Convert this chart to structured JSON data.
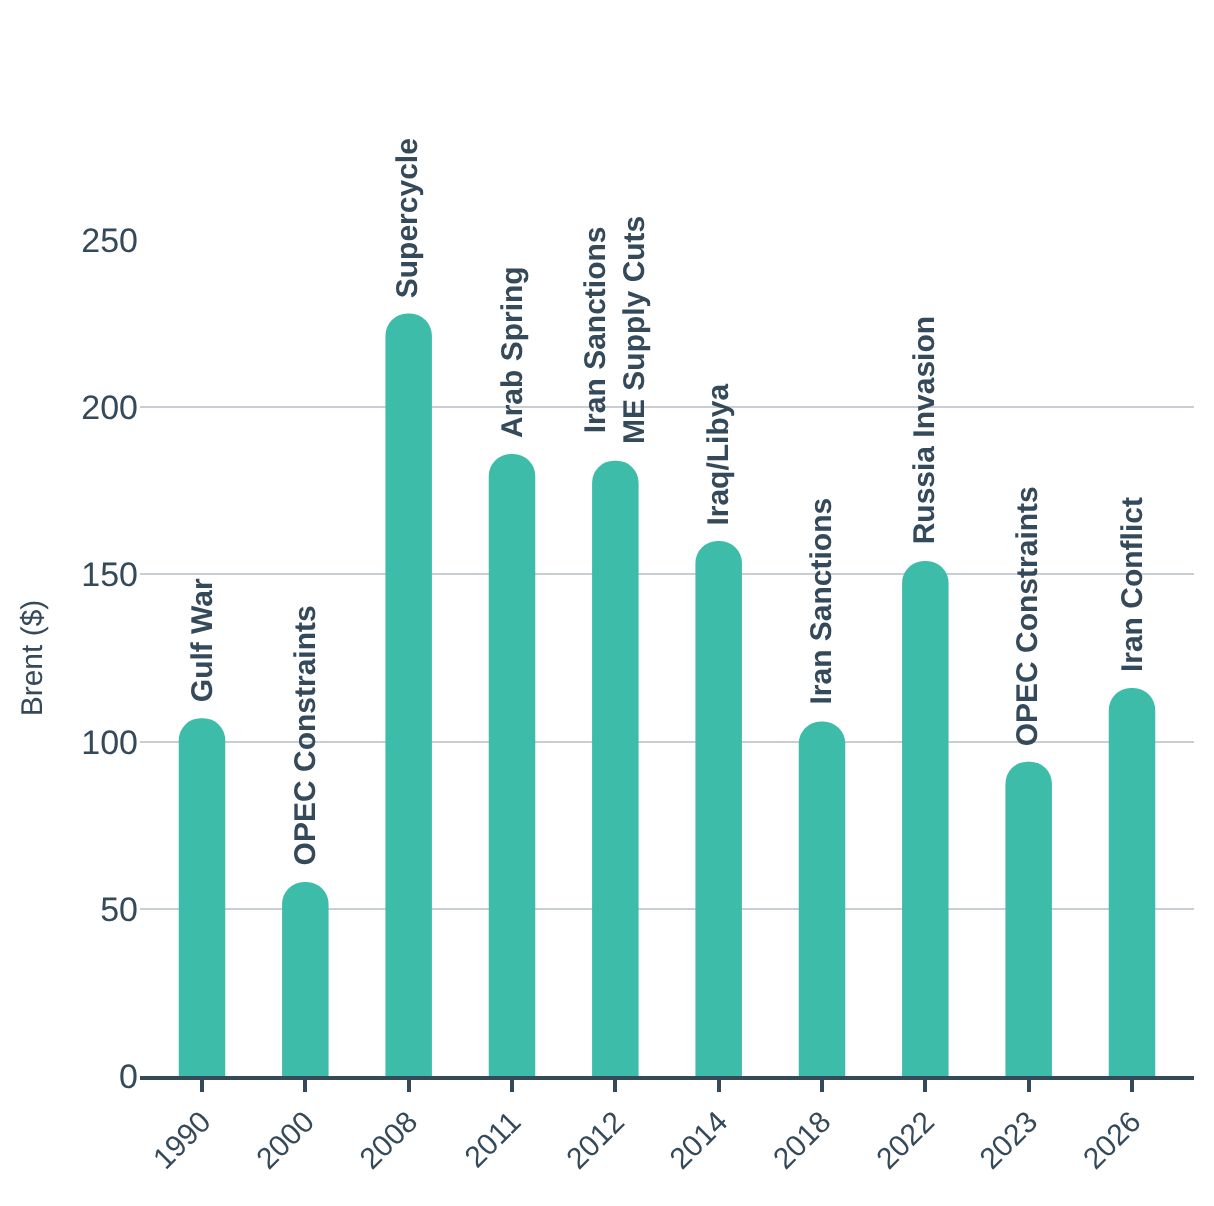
{
  "chart_data": {
    "type": "bar",
    "ylabel": "Brent ($)",
    "categories": [
      "1990",
      "2000",
      "2008",
      "2011",
      "2012",
      "2014",
      "2018",
      "2022",
      "2023",
      "2026"
    ],
    "values": [
      107,
      58,
      228,
      186,
      184,
      160,
      106,
      154,
      94,
      116
    ],
    "color": "#3dbda9",
    "ylim": [
      0,
      250
    ],
    "yticks": [
      0,
      50,
      100,
      150,
      200,
      250
    ],
    "grid": "y",
    "annotations": [
      {
        "text": "Gulf War",
        "x": "1990",
        "y": 107
      },
      {
        "text": "OPEC Constraints",
        "x": "2000",
        "y": 58
      },
      {
        "text": "Supercycle",
        "x": "2008",
        "y": 228
      },
      {
        "text": "Arab Spring",
        "x": "2011",
        "y": 186
      },
      {
        "text": "Iran Sanctions\nME Supply Cuts",
        "x": "2012",
        "y": 184
      },
      {
        "text": "Iraq/Libya",
        "x": "2014",
        "y": 160
      },
      {
        "text": "Iran Sanctions",
        "x": "2018",
        "y": 106
      },
      {
        "text": "Russia Invasion",
        "x": "2022",
        "y": 154
      },
      {
        "text": "OPEC Constraints",
        "x": "2023",
        "y": 94
      },
      {
        "text": "Iran Conflict",
        "x": "2026",
        "y": 116
      }
    ]
  }
}
